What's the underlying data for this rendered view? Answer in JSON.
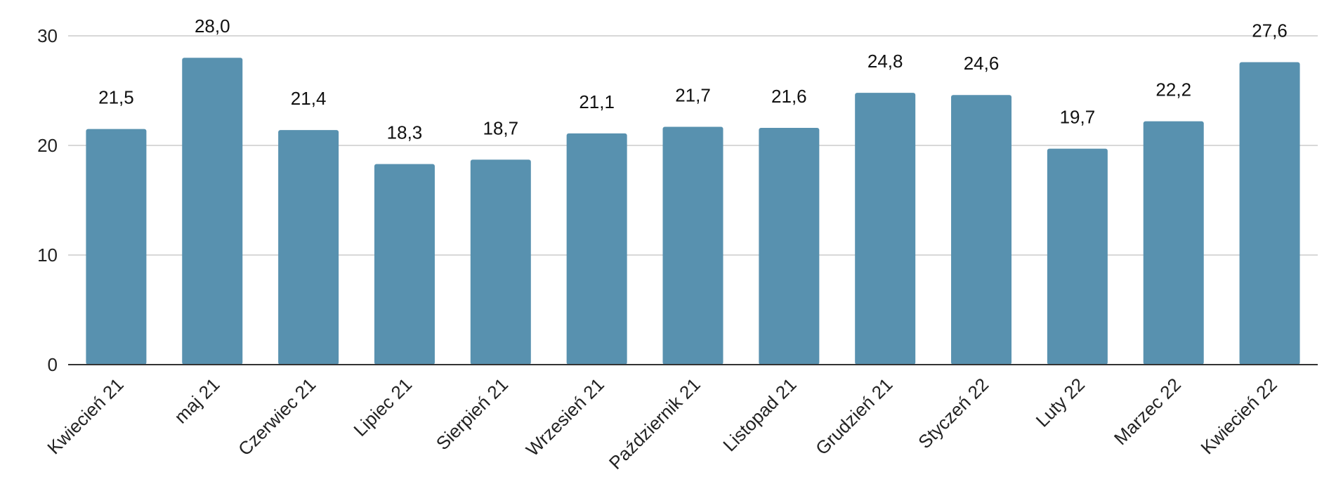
{
  "chart_data": {
    "type": "bar",
    "categories": [
      "Kwiecień 21",
      "maj 21",
      "Czerwiec 21",
      "Lipiec 21",
      "Sierpień 21",
      "Wrzesień 21",
      "Październik 21",
      "Listopad 21",
      "Grudzień 21",
      "Styczeń 22",
      "Luty 22",
      "Marzec 22",
      "Kwiecień 22"
    ],
    "values": [
      21.5,
      28.0,
      21.4,
      18.3,
      18.7,
      21.1,
      21.7,
      21.6,
      24.8,
      24.6,
      19.7,
      22.2,
      27.6
    ],
    "value_labels": [
      "21,5",
      "28,0",
      "21,4",
      "18,3",
      "18,7",
      "21,1",
      "21,7",
      "21,6",
      "24,8",
      "24,6",
      "19,7",
      "22,2",
      "27,6"
    ],
    "title": "",
    "xlabel": "",
    "ylabel": "",
    "ylim": [
      0,
      30
    ],
    "yticks": [
      0,
      10,
      20,
      30
    ],
    "ytick_labels": [
      "0",
      "10",
      "20",
      "30"
    ],
    "grid": true,
    "legend": "none",
    "colors": {
      "bar": "#5891AF",
      "grid": "#CCCCCC",
      "axis": "#333333"
    }
  }
}
